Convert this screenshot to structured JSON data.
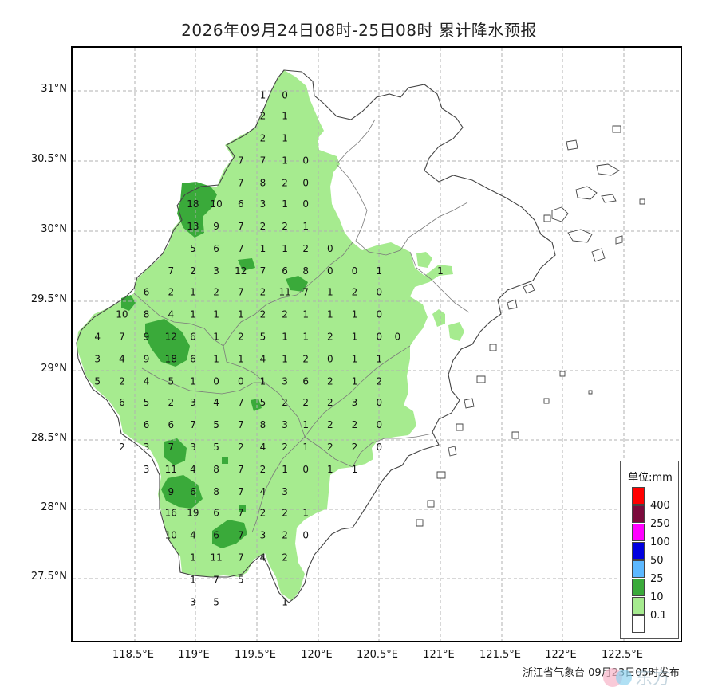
{
  "title": "2026年09月24日08时-25日08时 累计降水预报",
  "footer": "浙江省气象台 09月23日05时发布",
  "watermark": "东方",
  "lat_labels": [
    "31°N",
    "30.5°N",
    "30°N",
    "29.5°N",
    "29°N",
    "28.5°N",
    "28°N",
    "27.5°N"
  ],
  "lon_labels": [
    "118.5°E",
    "119°E",
    "119.5°E",
    "120°E",
    "120.5°E",
    "121°E",
    "121.5°E",
    "122°E",
    "122.5°E"
  ],
  "legend": {
    "title": "单位:mm",
    "items": [
      {
        "label": "",
        "color": "#ff0000"
      },
      {
        "label": "400",
        "color": "#7b0a3c"
      },
      {
        "label": "250",
        "color": "#ff00ff"
      },
      {
        "label": "100",
        "color": "#0000e0"
      },
      {
        "label": "50",
        "color": "#5cb8ff"
      },
      {
        "label": "25",
        "color": "#3aaa3a"
      },
      {
        "label": "10",
        "color": "#a6eb8f"
      },
      {
        "label": "0.1",
        "color": "#ffffff"
      }
    ]
  },
  "colors": {
    "light_rain": "#a6eb8f",
    "moderate_rain": "#3aaa3a",
    "grid": "#aaaaaa",
    "boundary": "#555555"
  },
  "station_values": [
    {
      "v": "1",
      "lon": 119.55,
      "lat": 30.97
    },
    {
      "v": "0",
      "lon": 119.73,
      "lat": 30.97
    },
    {
      "v": "2",
      "lon": 119.55,
      "lat": 30.82
    },
    {
      "v": "1",
      "lon": 119.73,
      "lat": 30.82
    },
    {
      "v": "2",
      "lon": 119.55,
      "lat": 30.66
    },
    {
      "v": "1",
      "lon": 119.73,
      "lat": 30.66
    },
    {
      "v": "7",
      "lon": 119.37,
      "lat": 30.5
    },
    {
      "v": "7",
      "lon": 119.55,
      "lat": 30.5
    },
    {
      "v": "1",
      "lon": 119.73,
      "lat": 30.5
    },
    {
      "v": "0",
      "lon": 119.9,
      "lat": 30.5
    },
    {
      "v": "7",
      "lon": 119.37,
      "lat": 30.34
    },
    {
      "v": "8",
      "lon": 119.55,
      "lat": 30.34
    },
    {
      "v": "2",
      "lon": 119.73,
      "lat": 30.34
    },
    {
      "v": "0",
      "lon": 119.9,
      "lat": 30.34
    },
    {
      "v": "18",
      "lon": 118.98,
      "lat": 30.19
    },
    {
      "v": "10",
      "lon": 119.17,
      "lat": 30.19
    },
    {
      "v": "6",
      "lon": 119.37,
      "lat": 30.19
    },
    {
      "v": "3",
      "lon": 119.55,
      "lat": 30.19
    },
    {
      "v": "1",
      "lon": 119.73,
      "lat": 30.19
    },
    {
      "v": "0",
      "lon": 119.9,
      "lat": 30.19
    },
    {
      "v": "13",
      "lon": 118.98,
      "lat": 30.03
    },
    {
      "v": "9",
      "lon": 119.17,
      "lat": 30.03
    },
    {
      "v": "7",
      "lon": 119.37,
      "lat": 30.03
    },
    {
      "v": "2",
      "lon": 119.55,
      "lat": 30.03
    },
    {
      "v": "2",
      "lon": 119.73,
      "lat": 30.03
    },
    {
      "v": "1",
      "lon": 119.9,
      "lat": 30.03
    },
    {
      "v": "5",
      "lon": 118.98,
      "lat": 29.87
    },
    {
      "v": "6",
      "lon": 119.17,
      "lat": 29.87
    },
    {
      "v": "7",
      "lon": 119.37,
      "lat": 29.87
    },
    {
      "v": "1",
      "lon": 119.55,
      "lat": 29.87
    },
    {
      "v": "1",
      "lon": 119.73,
      "lat": 29.87
    },
    {
      "v": "2",
      "lon": 119.9,
      "lat": 29.87
    },
    {
      "v": "0",
      "lon": 120.1,
      "lat": 29.87
    },
    {
      "v": "7",
      "lon": 118.8,
      "lat": 29.71
    },
    {
      "v": "2",
      "lon": 118.98,
      "lat": 29.71
    },
    {
      "v": "3",
      "lon": 119.17,
      "lat": 29.71
    },
    {
      "v": "12",
      "lon": 119.37,
      "lat": 29.71
    },
    {
      "v": "7",
      "lon": 119.55,
      "lat": 29.71
    },
    {
      "v": "6",
      "lon": 119.73,
      "lat": 29.71
    },
    {
      "v": "8",
      "lon": 119.9,
      "lat": 29.71
    },
    {
      "v": "0",
      "lon": 120.1,
      "lat": 29.71
    },
    {
      "v": "0",
      "lon": 120.3,
      "lat": 29.71
    },
    {
      "v": "1",
      "lon": 120.5,
      "lat": 29.71
    },
    {
      "v": "1",
      "lon": 121.0,
      "lat": 29.71
    },
    {
      "v": "6",
      "lon": 118.6,
      "lat": 29.56
    },
    {
      "v": "2",
      "lon": 118.8,
      "lat": 29.56
    },
    {
      "v": "1",
      "lon": 118.98,
      "lat": 29.56
    },
    {
      "v": "2",
      "lon": 119.17,
      "lat": 29.56
    },
    {
      "v": "7",
      "lon": 119.37,
      "lat": 29.56
    },
    {
      "v": "2",
      "lon": 119.55,
      "lat": 29.56
    },
    {
      "v": "11",
      "lon": 119.73,
      "lat": 29.56
    },
    {
      "v": "7",
      "lon": 119.9,
      "lat": 29.56
    },
    {
      "v": "1",
      "lon": 120.1,
      "lat": 29.56
    },
    {
      "v": "2",
      "lon": 120.3,
      "lat": 29.56
    },
    {
      "v": "0",
      "lon": 120.5,
      "lat": 29.56
    },
    {
      "v": "10",
      "lon": 118.4,
      "lat": 29.4
    },
    {
      "v": "8",
      "lon": 118.6,
      "lat": 29.4
    },
    {
      "v": "4",
      "lon": 118.8,
      "lat": 29.4
    },
    {
      "v": "1",
      "lon": 118.98,
      "lat": 29.4
    },
    {
      "v": "1",
      "lon": 119.17,
      "lat": 29.4
    },
    {
      "v": "1",
      "lon": 119.37,
      "lat": 29.4
    },
    {
      "v": "2",
      "lon": 119.55,
      "lat": 29.4
    },
    {
      "v": "2",
      "lon": 119.73,
      "lat": 29.4
    },
    {
      "v": "1",
      "lon": 119.9,
      "lat": 29.4
    },
    {
      "v": "1",
      "lon": 120.1,
      "lat": 29.4
    },
    {
      "v": "1",
      "lon": 120.3,
      "lat": 29.4
    },
    {
      "v": "0",
      "lon": 120.5,
      "lat": 29.4
    },
    {
      "v": "4",
      "lon": 118.2,
      "lat": 29.24
    },
    {
      "v": "7",
      "lon": 118.4,
      "lat": 29.24
    },
    {
      "v": "9",
      "lon": 118.6,
      "lat": 29.24
    },
    {
      "v": "12",
      "lon": 118.8,
      "lat": 29.24
    },
    {
      "v": "6",
      "lon": 118.98,
      "lat": 29.24
    },
    {
      "v": "1",
      "lon": 119.17,
      "lat": 29.24
    },
    {
      "v": "2",
      "lon": 119.37,
      "lat": 29.24
    },
    {
      "v": "5",
      "lon": 119.55,
      "lat": 29.24
    },
    {
      "v": "1",
      "lon": 119.73,
      "lat": 29.24
    },
    {
      "v": "1",
      "lon": 119.9,
      "lat": 29.24
    },
    {
      "v": "2",
      "lon": 120.1,
      "lat": 29.24
    },
    {
      "v": "1",
      "lon": 120.3,
      "lat": 29.24
    },
    {
      "v": "0",
      "lon": 120.5,
      "lat": 29.24
    },
    {
      "v": "0",
      "lon": 120.65,
      "lat": 29.24
    },
    {
      "v": "3",
      "lon": 118.2,
      "lat": 29.08
    },
    {
      "v": "4",
      "lon": 118.4,
      "lat": 29.08
    },
    {
      "v": "9",
      "lon": 118.6,
      "lat": 29.08
    },
    {
      "v": "18",
      "lon": 118.8,
      "lat": 29.08
    },
    {
      "v": "6",
      "lon": 118.98,
      "lat": 29.08
    },
    {
      "v": "1",
      "lon": 119.17,
      "lat": 29.08
    },
    {
      "v": "1",
      "lon": 119.37,
      "lat": 29.08
    },
    {
      "v": "4",
      "lon": 119.55,
      "lat": 29.08
    },
    {
      "v": "1",
      "lon": 119.73,
      "lat": 29.08
    },
    {
      "v": "2",
      "lon": 119.9,
      "lat": 29.08
    },
    {
      "v": "0",
      "lon": 120.1,
      "lat": 29.08
    },
    {
      "v": "1",
      "lon": 120.3,
      "lat": 29.08
    },
    {
      "v": "1",
      "lon": 120.5,
      "lat": 29.08
    },
    {
      "v": "5",
      "lon": 118.2,
      "lat": 28.92
    },
    {
      "v": "2",
      "lon": 118.4,
      "lat": 28.92
    },
    {
      "v": "4",
      "lon": 118.6,
      "lat": 28.92
    },
    {
      "v": "5",
      "lon": 118.8,
      "lat": 28.92
    },
    {
      "v": "1",
      "lon": 118.98,
      "lat": 28.92
    },
    {
      "v": "0",
      "lon": 119.17,
      "lat": 28.92
    },
    {
      "v": "0",
      "lon": 119.37,
      "lat": 28.92
    },
    {
      "v": "1",
      "lon": 119.55,
      "lat": 28.92
    },
    {
      "v": "3",
      "lon": 119.73,
      "lat": 28.92
    },
    {
      "v": "6",
      "lon": 119.9,
      "lat": 28.92
    },
    {
      "v": "2",
      "lon": 120.1,
      "lat": 28.92
    },
    {
      "v": "1",
      "lon": 120.3,
      "lat": 28.92
    },
    {
      "v": "2",
      "lon": 120.5,
      "lat": 28.92
    },
    {
      "v": "6",
      "lon": 118.4,
      "lat": 28.77
    },
    {
      "v": "5",
      "lon": 118.6,
      "lat": 28.77
    },
    {
      "v": "2",
      "lon": 118.8,
      "lat": 28.77
    },
    {
      "v": "3",
      "lon": 118.98,
      "lat": 28.77
    },
    {
      "v": "4",
      "lon": 119.17,
      "lat": 28.77
    },
    {
      "v": "7",
      "lon": 119.37,
      "lat": 28.77
    },
    {
      "v": "5",
      "lon": 119.55,
      "lat": 28.77
    },
    {
      "v": "2",
      "lon": 119.73,
      "lat": 28.77
    },
    {
      "v": "2",
      "lon": 119.9,
      "lat": 28.77
    },
    {
      "v": "2",
      "lon": 120.1,
      "lat": 28.77
    },
    {
      "v": "3",
      "lon": 120.3,
      "lat": 28.77
    },
    {
      "v": "0",
      "lon": 120.5,
      "lat": 28.77
    },
    {
      "v": "6",
      "lon": 118.6,
      "lat": 28.61
    },
    {
      "v": "6",
      "lon": 118.8,
      "lat": 28.61
    },
    {
      "v": "7",
      "lon": 118.98,
      "lat": 28.61
    },
    {
      "v": "5",
      "lon": 119.17,
      "lat": 28.61
    },
    {
      "v": "7",
      "lon": 119.37,
      "lat": 28.61
    },
    {
      "v": "8",
      "lon": 119.55,
      "lat": 28.61
    },
    {
      "v": "3",
      "lon": 119.73,
      "lat": 28.61
    },
    {
      "v": "1",
      "lon": 119.9,
      "lat": 28.61
    },
    {
      "v": "2",
      "lon": 120.1,
      "lat": 28.61
    },
    {
      "v": "2",
      "lon": 120.3,
      "lat": 28.61
    },
    {
      "v": "0",
      "lon": 120.5,
      "lat": 28.61
    },
    {
      "v": "2",
      "lon": 118.4,
      "lat": 28.45
    },
    {
      "v": "3",
      "lon": 118.6,
      "lat": 28.45
    },
    {
      "v": "7",
      "lon": 118.8,
      "lat": 28.45
    },
    {
      "v": "3",
      "lon": 118.98,
      "lat": 28.45
    },
    {
      "v": "5",
      "lon": 119.17,
      "lat": 28.45
    },
    {
      "v": "2",
      "lon": 119.37,
      "lat": 28.45
    },
    {
      "v": "4",
      "lon": 119.55,
      "lat": 28.45
    },
    {
      "v": "2",
      "lon": 119.73,
      "lat": 28.45
    },
    {
      "v": "1",
      "lon": 119.9,
      "lat": 28.45
    },
    {
      "v": "2",
      "lon": 120.1,
      "lat": 28.45
    },
    {
      "v": "2",
      "lon": 120.3,
      "lat": 28.45
    },
    {
      "v": "0",
      "lon": 120.5,
      "lat": 28.45
    },
    {
      "v": "3",
      "lon": 118.6,
      "lat": 28.29
    },
    {
      "v": "11",
      "lon": 118.8,
      "lat": 28.29
    },
    {
      "v": "4",
      "lon": 118.98,
      "lat": 28.29
    },
    {
      "v": "8",
      "lon": 119.17,
      "lat": 28.29
    },
    {
      "v": "7",
      "lon": 119.37,
      "lat": 28.29
    },
    {
      "v": "2",
      "lon": 119.55,
      "lat": 28.29
    },
    {
      "v": "1",
      "lon": 119.73,
      "lat": 28.29
    },
    {
      "v": "0",
      "lon": 119.9,
      "lat": 28.29
    },
    {
      "v": "1",
      "lon": 120.1,
      "lat": 28.29
    },
    {
      "v": "1",
      "lon": 120.3,
      "lat": 28.29
    },
    {
      "v": "9",
      "lon": 118.8,
      "lat": 28.13
    },
    {
      "v": "6",
      "lon": 118.98,
      "lat": 28.13
    },
    {
      "v": "8",
      "lon": 119.17,
      "lat": 28.13
    },
    {
      "v": "7",
      "lon": 119.37,
      "lat": 28.13
    },
    {
      "v": "4",
      "lon": 119.55,
      "lat": 28.13
    },
    {
      "v": "3",
      "lon": 119.73,
      "lat": 28.13
    },
    {
      "v": "16",
      "lon": 118.8,
      "lat": 27.98
    },
    {
      "v": "19",
      "lon": 118.98,
      "lat": 27.98
    },
    {
      "v": "6",
      "lon": 119.17,
      "lat": 27.98
    },
    {
      "v": "7",
      "lon": 119.37,
      "lat": 27.98
    },
    {
      "v": "2",
      "lon": 119.55,
      "lat": 27.98
    },
    {
      "v": "2",
      "lon": 119.73,
      "lat": 27.98
    },
    {
      "v": "1",
      "lon": 119.9,
      "lat": 27.98
    },
    {
      "v": "10",
      "lon": 118.8,
      "lat": 27.82
    },
    {
      "v": "4",
      "lon": 118.98,
      "lat": 27.82
    },
    {
      "v": "6",
      "lon": 119.17,
      "lat": 27.82
    },
    {
      "v": "7",
      "lon": 119.37,
      "lat": 27.82
    },
    {
      "v": "3",
      "lon": 119.55,
      "lat": 27.82
    },
    {
      "v": "2",
      "lon": 119.73,
      "lat": 27.82
    },
    {
      "v": "0",
      "lon": 119.9,
      "lat": 27.82
    },
    {
      "v": "1",
      "lon": 118.98,
      "lat": 27.66
    },
    {
      "v": "11",
      "lon": 119.17,
      "lat": 27.66
    },
    {
      "v": "7",
      "lon": 119.37,
      "lat": 27.66
    },
    {
      "v": "4",
      "lon": 119.55,
      "lat": 27.66
    },
    {
      "v": "2",
      "lon": 119.73,
      "lat": 27.66
    },
    {
      "v": "1",
      "lon": 118.98,
      "lat": 27.5
    },
    {
      "v": "7",
      "lon": 119.17,
      "lat": 27.5
    },
    {
      "v": "5",
      "lon": 119.37,
      "lat": 27.5
    },
    {
      "v": "3",
      "lon": 118.98,
      "lat": 27.34
    },
    {
      "v": "5",
      "lon": 119.17,
      "lat": 27.34
    },
    {
      "v": "1",
      "lon": 119.73,
      "lat": 27.34
    }
  ]
}
